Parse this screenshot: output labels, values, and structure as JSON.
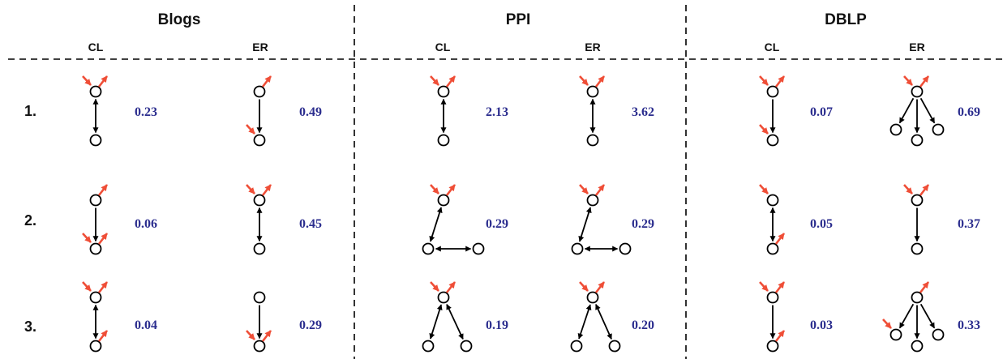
{
  "colors": {
    "in_arrow": "#ef4e37",
    "out_arrow": "#ef4e37",
    "edge": "#000000",
    "value": "#2b2d8e"
  },
  "datasets": [
    {
      "title": "Blogs",
      "models": [
        "CL",
        "ER"
      ]
    },
    {
      "title": "PPI",
      "models": [
        "CL",
        "ER"
      ]
    },
    {
      "title": "DBLP",
      "models": [
        "CL",
        "ER"
      ]
    }
  ],
  "ranks": [
    "1.",
    "2.",
    "3."
  ],
  "values": [
    [
      "0.23",
      "0.49",
      "2.13",
      "3.62",
      "0.07",
      "0.69"
    ],
    [
      "0.06",
      "0.45",
      "0.29",
      "0.29",
      "0.05",
      "0.37"
    ],
    [
      "0.04",
      "0.29",
      "0.19",
      "0.20",
      "0.03",
      "0.33"
    ]
  ]
}
